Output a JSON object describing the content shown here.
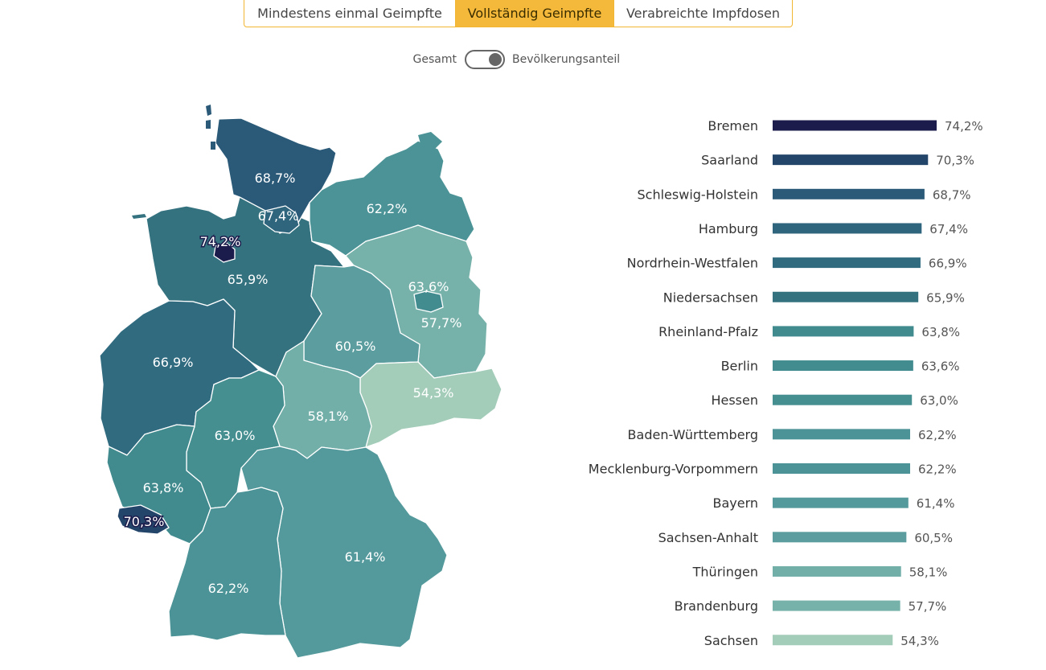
{
  "tabs": [
    {
      "label": "Mindestens einmal Geimpfte",
      "active": false
    },
    {
      "label": "Vollständig Geimpfte",
      "active": true
    },
    {
      "label": "Verabreichte Impfdosen",
      "active": false
    }
  ],
  "toggle": {
    "left_label": "Gesamt",
    "right_label": "Bevölkerungsanteil",
    "state": "right"
  },
  "colors": {
    "accent": "#f4b93a",
    "bar_darkest": "#1c1c4c",
    "bar_lightest": "#a3ccb9"
  },
  "chart_data": [
    {
      "type": "bar",
      "orientation": "horizontal",
      "unit": "%",
      "categories": [
        "Bremen",
        "Saarland",
        "Schleswig-Holstein",
        "Hamburg",
        "Nordrhein-Westfalen",
        "Niedersachsen",
        "Rheinland-Pfalz",
        "Berlin",
        "Hessen",
        "Baden-Württemberg",
        "Mecklenburg-Vorpommern",
        "Bayern",
        "Sachsen-Anhalt",
        "Thüringen",
        "Brandenburg",
        "Sachsen"
      ],
      "values": [
        74.2,
        70.3,
        68.7,
        67.4,
        66.9,
        65.9,
        63.8,
        63.6,
        63.0,
        62.2,
        62.2,
        61.4,
        60.5,
        58.1,
        57.7,
        54.3
      ],
      "value_labels": [
        "74,2%",
        "70,3%",
        "68,7%",
        "67,4%",
        "66,9%",
        "65,9%",
        "63,8%",
        "63,6%",
        "63,0%",
        "62,2%",
        "62,2%",
        "61,4%",
        "60,5%",
        "58,1%",
        "57,7%",
        "54,3%"
      ],
      "colors": [
        "#1c1c4c",
        "#24456a",
        "#2b5a78",
        "#2f657d",
        "#316b80",
        "#35727f",
        "#418b8f",
        "#428c90",
        "#468f91",
        "#4b9396",
        "#4b9396",
        "#54999b",
        "#5c9e9f",
        "#72afa9",
        "#77b2aa",
        "#a3ccb9"
      ]
    },
    {
      "type": "choropleth",
      "regions": [
        {
          "name": "Schleswig-Holstein",
          "label": "68,7%",
          "color": "#2b5a78"
        },
        {
          "name": "Hamburg",
          "label": "67,4%",
          "color": "#2f657d"
        },
        {
          "name": "Mecklenburg-Vorpommern",
          "label": "62,2%",
          "color": "#4b9396"
        },
        {
          "name": "Bremen",
          "label": "74,2%",
          "color": "#1c1c4c"
        },
        {
          "name": "Niedersachsen",
          "label": "65,9%",
          "color": "#35727f"
        },
        {
          "name": "Berlin",
          "label": "63,6%",
          "color": "#428c90"
        },
        {
          "name": "Brandenburg",
          "label": "57,7%",
          "color": "#77b2aa"
        },
        {
          "name": "Sachsen-Anhalt",
          "label": "60,5%",
          "color": "#5c9e9f"
        },
        {
          "name": "Nordrhein-Westfalen",
          "label": "66,9%",
          "color": "#316b80"
        },
        {
          "name": "Sachsen",
          "label": "54,3%",
          "color": "#a3ccb9"
        },
        {
          "name": "Thüringen",
          "label": "58,1%",
          "color": "#72afa9"
        },
        {
          "name": "Hessen",
          "label": "63,0%",
          "color": "#468f91"
        },
        {
          "name": "Rheinland-Pfalz",
          "label": "63,8%",
          "color": "#418b8f"
        },
        {
          "name": "Saarland",
          "label": "70,3%",
          "color": "#24456a"
        },
        {
          "name": "Bayern",
          "label": "61,4%",
          "color": "#54999b"
        },
        {
          "name": "Baden-Württemberg",
          "label": "62,2%",
          "color": "#4b9396"
        }
      ]
    }
  ]
}
